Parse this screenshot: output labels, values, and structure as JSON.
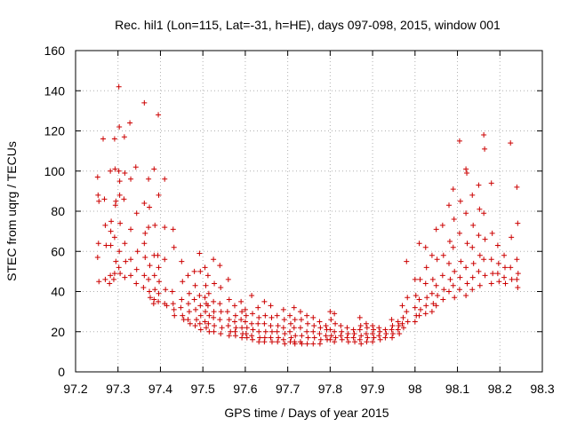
{
  "chart_data": {
    "type": "scatter",
    "title": "Rec. hil1 (Lon=115, Lat=-31, h=HE), days 097-098, 2015, window 001",
    "xlabel": "GPS time / Days of year 2015",
    "ylabel": "STEC from uqrg / TECUs",
    "xlim": [
      97.2,
      98.3
    ],
    "ylim": [
      0,
      160
    ],
    "xticks": [
      97.2,
      97.3,
      97.4,
      97.5,
      97.6,
      97.7,
      97.8,
      97.9,
      98,
      98.1,
      98.2,
      98.3
    ],
    "xtick_labels": [
      "97.2",
      "97.3",
      "97.4",
      "97.5",
      "97.6",
      "97.7",
      "97.8",
      "97.9",
      "98",
      "98.1",
      "98.2",
      "98.3"
    ],
    "yticks": [
      0,
      20,
      40,
      60,
      80,
      100,
      120,
      140,
      160
    ],
    "ytick_labels": [
      "0",
      "20",
      "40",
      "60",
      "80",
      "100",
      "120",
      "140",
      "160"
    ],
    "grid": true,
    "marker": "+",
    "color": "#cc0000",
    "points": [
      [
        97.252,
        97
      ],
      [
        97.253,
        88
      ],
      [
        97.255,
        85
      ],
      [
        97.254,
        64
      ],
      [
        97.252,
        57
      ],
      [
        97.255,
        45
      ],
      [
        97.265,
        116
      ],
      [
        97.268,
        86
      ],
      [
        97.27,
        73
      ],
      [
        97.272,
        63
      ],
      [
        97.27,
        46
      ],
      [
        97.282,
        100
      ],
      [
        97.284,
        75
      ],
      [
        97.283,
        70
      ],
      [
        97.283,
        63
      ],
      [
        97.282,
        48
      ],
      [
        97.28,
        44
      ],
      [
        97.292,
        116
      ],
      [
        97.293,
        101
      ],
      [
        97.295,
        85
      ],
      [
        97.294,
        83
      ],
      [
        97.292,
        67
      ],
      [
        97.295,
        55
      ],
      [
        97.292,
        49
      ],
      [
        97.29,
        46
      ],
      [
        97.302,
        142
      ],
      [
        97.303,
        122
      ],
      [
        97.302,
        100
      ],
      [
        97.304,
        95
      ],
      [
        97.304,
        88
      ],
      [
        97.305,
        74
      ],
      [
        97.303,
        60
      ],
      [
        97.302,
        52
      ],
      [
        97.305,
        49
      ],
      [
        97.315,
        117
      ],
      [
        97.316,
        99
      ],
      [
        97.314,
        86
      ],
      [
        97.316,
        64
      ],
      [
        97.318,
        55
      ],
      [
        97.316,
        47
      ],
      [
        97.328,
        124
      ],
      [
        97.33,
        96
      ],
      [
        97.33,
        71
      ],
      [
        97.33,
        56
      ],
      [
        97.33,
        48
      ],
      [
        97.342,
        102
      ],
      [
        97.344,
        79
      ],
      [
        97.346,
        60
      ],
      [
        97.344,
        51
      ],
      [
        97.343,
        44
      ],
      [
        97.362,
        134
      ],
      [
        97.362,
        84
      ],
      [
        97.364,
        69
      ],
      [
        97.362,
        64
      ],
      [
        97.364,
        57
      ],
      [
        97.362,
        48
      ],
      [
        97.36,
        42
      ],
      [
        97.372,
        96
      ],
      [
        97.374,
        82
      ],
      [
        97.372,
        72
      ],
      [
        97.375,
        53
      ],
      [
        97.372,
        46
      ],
      [
        97.374,
        40
      ],
      [
        97.376,
        37
      ],
      [
        97.385,
        101
      ],
      [
        97.387,
        73
      ],
      [
        97.385,
        58
      ],
      [
        97.386,
        48
      ],
      [
        97.387,
        41
      ],
      [
        97.385,
        36
      ],
      [
        97.384,
        34
      ],
      [
        97.395,
        128
      ],
      [
        97.396,
        88
      ],
      [
        97.394,
        58
      ],
      [
        97.396,
        52
      ],
      [
        97.397,
        45
      ],
      [
        97.396,
        39
      ],
      [
        97.395,
        35
      ],
      [
        97.41,
        96
      ],
      [
        97.41,
        72
      ],
      [
        97.41,
        56
      ],
      [
        97.412,
        41
      ],
      [
        97.41,
        34
      ],
      [
        97.415,
        33
      ],
      [
        97.43,
        71
      ],
      [
        97.432,
        62
      ],
      [
        97.428,
        40
      ],
      [
        97.43,
        34
      ],
      [
        97.432,
        31
      ],
      [
        97.433,
        28
      ],
      [
        97.45,
        55
      ],
      [
        97.452,
        45
      ],
      [
        97.45,
        36
      ],
      [
        97.448,
        32
      ],
      [
        97.452,
        28
      ],
      [
        97.455,
        26
      ],
      [
        97.465,
        48
      ],
      [
        97.468,
        39
      ],
      [
        97.466,
        34
      ],
      [
        97.468,
        30
      ],
      [
        97.465,
        26
      ],
      [
        97.47,
        24
      ],
      [
        97.48,
        50
      ],
      [
        97.482,
        43
      ],
      [
        97.48,
        36
      ],
      [
        97.483,
        31
      ],
      [
        97.485,
        26
      ],
      [
        97.482,
        23
      ],
      [
        97.492,
        59
      ],
      [
        97.494,
        50
      ],
      [
        97.492,
        38
      ],
      [
        97.494,
        33
      ],
      [
        97.495,
        28
      ],
      [
        97.493,
        24
      ],
      [
        97.495,
        21
      ],
      [
        97.505,
        52
      ],
      [
        97.507,
        43
      ],
      [
        97.505,
        37
      ],
      [
        97.508,
        34
      ],
      [
        97.506,
        30
      ],
      [
        97.505,
        25
      ],
      [
        97.508,
        22
      ],
      [
        97.512,
        48
      ],
      [
        97.514,
        39
      ],
      [
        97.512,
        33
      ],
      [
        97.515,
        28
      ],
      [
        97.513,
        24
      ],
      [
        97.515,
        20
      ],
      [
        97.525,
        56
      ],
      [
        97.527,
        44
      ],
      [
        97.525,
        35
      ],
      [
        97.526,
        30
      ],
      [
        97.525,
        27
      ],
      [
        97.527,
        23
      ],
      [
        97.526,
        20
      ],
      [
        97.54,
        53
      ],
      [
        97.542,
        42
      ],
      [
        97.54,
        34
      ],
      [
        97.543,
        30
      ],
      [
        97.54,
        26
      ],
      [
        97.545,
        22
      ],
      [
        97.542,
        19
      ],
      [
        97.56,
        46
      ],
      [
        97.562,
        36
      ],
      [
        97.558,
        30
      ],
      [
        97.562,
        26
      ],
      [
        97.56,
        23
      ],
      [
        97.565,
        20
      ],
      [
        97.562,
        18
      ],
      [
        97.575,
        33
      ],
      [
        97.577,
        28
      ],
      [
        97.575,
        25
      ],
      [
        97.578,
        22
      ],
      [
        97.576,
        20
      ],
      [
        97.577,
        18
      ],
      [
        97.59,
        35
      ],
      [
        97.592,
        30
      ],
      [
        97.59,
        26
      ],
      [
        97.592,
        22
      ],
      [
        97.594,
        19
      ],
      [
        97.592,
        17
      ],
      [
        97.6,
        31
      ],
      [
        97.602,
        28
      ],
      [
        97.6,
        25
      ],
      [
        97.604,
        22
      ],
      [
        97.602,
        19
      ],
      [
        97.604,
        17
      ],
      [
        97.615,
        38
      ],
      [
        97.617,
        29
      ],
      [
        97.615,
        24
      ],
      [
        97.618,
        21
      ],
      [
        97.615,
        18
      ],
      [
        97.617,
        16
      ],
      [
        97.63,
        32
      ],
      [
        97.632,
        27
      ],
      [
        97.63,
        24
      ],
      [
        97.632,
        20
      ],
      [
        97.634,
        17
      ],
      [
        97.632,
        15
      ],
      [
        97.645,
        35
      ],
      [
        97.647,
        28
      ],
      [
        97.645,
        24
      ],
      [
        97.648,
        20
      ],
      [
        97.646,
        17
      ],
      [
        97.645,
        15
      ],
      [
        97.66,
        33
      ],
      [
        97.662,
        27
      ],
      [
        97.66,
        23
      ],
      [
        97.663,
        20
      ],
      [
        97.66,
        17
      ],
      [
        97.663,
        15
      ],
      [
        97.675,
        28
      ],
      [
        97.677,
        23
      ],
      [
        97.675,
        20
      ],
      [
        97.678,
        17
      ],
      [
        97.676,
        15
      ],
      [
        97.69,
        31
      ],
      [
        97.692,
        26
      ],
      [
        97.69,
        22
      ],
      [
        97.693,
        19
      ],
      [
        97.69,
        16
      ],
      [
        97.693,
        14
      ],
      [
        97.705,
        28
      ],
      [
        97.707,
        24
      ],
      [
        97.705,
        20
      ],
      [
        97.708,
        17
      ],
      [
        97.706,
        15
      ],
      [
        97.715,
        32
      ],
      [
        97.717,
        26
      ],
      [
        97.715,
        22
      ],
      [
        97.718,
        18
      ],
      [
        97.716,
        15
      ],
      [
        97.717,
        14
      ],
      [
        97.73,
        30
      ],
      [
        97.732,
        26
      ],
      [
        97.73,
        22
      ],
      [
        97.733,
        18
      ],
      [
        97.73,
        15
      ],
      [
        97.733,
        14
      ],
      [
        97.745,
        28
      ],
      [
        97.747,
        24
      ],
      [
        97.745,
        20
      ],
      [
        97.748,
        17
      ],
      [
        97.746,
        14
      ],
      [
        97.76,
        27
      ],
      [
        97.762,
        23
      ],
      [
        97.76,
        20
      ],
      [
        97.763,
        17
      ],
      [
        97.76,
        14
      ],
      [
        97.775,
        25
      ],
      [
        97.777,
        22
      ],
      [
        97.775,
        19
      ],
      [
        97.778,
        16
      ],
      [
        97.776,
        14
      ],
      [
        97.79,
        23
      ],
      [
        97.792,
        21
      ],
      [
        97.79,
        18
      ],
      [
        97.793,
        16
      ],
      [
        97.8,
        30
      ],
      [
        97.802,
        26
      ],
      [
        97.8,
        21
      ],
      [
        97.803,
        18
      ],
      [
        97.8,
        16
      ],
      [
        97.81,
        29
      ],
      [
        97.812,
        24
      ],
      [
        97.81,
        20
      ],
      [
        97.813,
        17
      ],
      [
        97.81,
        15
      ],
      [
        97.825,
        23
      ],
      [
        97.827,
        20
      ],
      [
        97.825,
        18
      ],
      [
        97.828,
        16
      ],
      [
        97.84,
        22
      ],
      [
        97.842,
        19
      ],
      [
        97.84,
        17
      ],
      [
        97.843,
        15
      ],
      [
        97.855,
        21
      ],
      [
        97.857,
        19
      ],
      [
        97.855,
        17
      ],
      [
        97.858,
        15
      ],
      [
        97.87,
        27
      ],
      [
        97.872,
        23
      ],
      [
        97.87,
        21
      ],
      [
        97.873,
        18
      ],
      [
        97.87,
        16
      ],
      [
        97.873,
        14
      ],
      [
        97.885,
        24
      ],
      [
        97.887,
        22
      ],
      [
        97.885,
        19
      ],
      [
        97.888,
        17
      ],
      [
        97.886,
        15
      ],
      [
        97.9,
        23
      ],
      [
        97.902,
        21
      ],
      [
        97.9,
        19
      ],
      [
        97.903,
        17
      ],
      [
        97.9,
        15
      ],
      [
        97.915,
        22
      ],
      [
        97.917,
        20
      ],
      [
        97.915,
        18
      ],
      [
        97.918,
        16
      ],
      [
        97.93,
        21
      ],
      [
        97.932,
        19
      ],
      [
        97.93,
        17
      ],
      [
        97.945,
        26
      ],
      [
        97.947,
        23
      ],
      [
        97.945,
        21
      ],
      [
        97.948,
        19
      ],
      [
        97.946,
        17
      ],
      [
        97.96,
        25
      ],
      [
        97.962,
        23
      ],
      [
        97.96,
        21
      ],
      [
        97.963,
        19
      ],
      [
        97.97,
        33
      ],
      [
        97.972,
        27
      ],
      [
        97.97,
        24
      ],
      [
        97.973,
        22
      ],
      [
        97.98,
        55
      ],
      [
        97.982,
        37
      ],
      [
        97.98,
        30
      ],
      [
        97.983,
        25
      ],
      [
        98.0,
        46
      ],
      [
        98.002,
        38
      ],
      [
        98.0,
        32
      ],
      [
        98.003,
        28
      ],
      [
        98.0,
        25
      ],
      [
        98.01,
        64
      ],
      [
        98.012,
        46
      ],
      [
        98.01,
        36
      ],
      [
        98.013,
        31
      ],
      [
        98.01,
        28
      ],
      [
        98.025,
        62
      ],
      [
        98.027,
        52
      ],
      [
        98.025,
        44
      ],
      [
        98.028,
        37
      ],
      [
        98.026,
        33
      ],
      [
        98.025,
        29
      ],
      [
        98.04,
        58
      ],
      [
        98.042,
        46
      ],
      [
        98.04,
        39
      ],
      [
        98.043,
        34
      ],
      [
        98.04,
        30
      ],
      [
        98.05,
        71
      ],
      [
        98.052,
        56
      ],
      [
        98.05,
        43
      ],
      [
        98.053,
        38
      ],
      [
        98.05,
        33
      ],
      [
        98.065,
        73
      ],
      [
        98.067,
        58
      ],
      [
        98.065,
        48
      ],
      [
        98.068,
        41
      ],
      [
        98.066,
        36
      ],
      [
        98.08,
        83
      ],
      [
        98.082,
        65
      ],
      [
        98.08,
        54
      ],
      [
        98.083,
        46
      ],
      [
        98.08,
        40
      ],
      [
        98.09,
        91
      ],
      [
        98.092,
        76
      ],
      [
        98.09,
        62
      ],
      [
        98.093,
        50
      ],
      [
        98.09,
        43
      ],
      [
        98.093,
        37
      ],
      [
        98.105,
        115
      ],
      [
        98.107,
        85
      ],
      [
        98.105,
        69
      ],
      [
        98.108,
        55
      ],
      [
        98.106,
        47
      ],
      [
        98.105,
        41
      ],
      [
        98.12,
        101
      ],
      [
        98.122,
        99
      ],
      [
        98.12,
        79
      ],
      [
        98.123,
        64
      ],
      [
        98.12,
        52
      ],
      [
        98.123,
        44
      ],
      [
        98.12,
        38
      ],
      [
        98.135,
        88
      ],
      [
        98.137,
        73
      ],
      [
        98.135,
        62
      ],
      [
        98.138,
        54
      ],
      [
        98.136,
        47
      ],
      [
        98.135,
        41
      ],
      [
        98.15,
        93
      ],
      [
        98.152,
        81
      ],
      [
        98.15,
        68
      ],
      [
        98.153,
        58
      ],
      [
        98.15,
        50
      ],
      [
        98.153,
        43
      ],
      [
        98.162,
        118
      ],
      [
        98.164,
        111
      ],
      [
        98.162,
        79
      ],
      [
        98.165,
        66
      ],
      [
        98.162,
        56
      ],
      [
        98.165,
        48
      ],
      [
        98.18,
        94
      ],
      [
        98.182,
        69
      ],
      [
        98.18,
        56
      ],
      [
        98.183,
        49
      ],
      [
        98.18,
        44
      ],
      [
        98.195,
        63
      ],
      [
        98.197,
        54
      ],
      [
        98.195,
        49
      ],
      [
        98.198,
        45
      ],
      [
        98.21,
        58
      ],
      [
        98.212,
        52
      ],
      [
        98.21,
        47
      ],
      [
        98.213,
        44
      ],
      [
        98.225,
        114
      ],
      [
        98.227,
        67
      ],
      [
        98.225,
        52
      ],
      [
        98.228,
        46
      ],
      [
        98.24,
        92
      ],
      [
        98.242,
        74
      ],
      [
        98.24,
        56
      ],
      [
        98.243,
        49
      ],
      [
        98.24,
        46
      ],
      [
        98.242,
        42
      ]
    ]
  }
}
